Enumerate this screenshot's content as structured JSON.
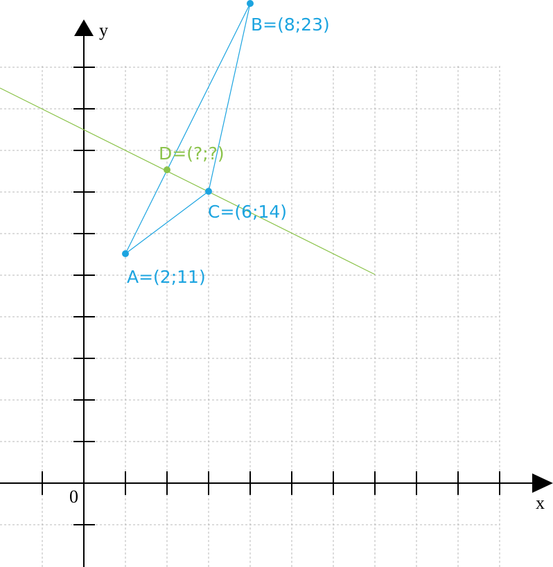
{
  "axes": {
    "x_label": "x",
    "y_label": "y",
    "origin_label": "0"
  },
  "points": [
    {
      "label": "A=(2;11)"
    },
    {
      "label": "B=(8;23)"
    },
    {
      "label": "C=(6;14)"
    },
    {
      "label": "D=(?;?)"
    }
  ]
}
